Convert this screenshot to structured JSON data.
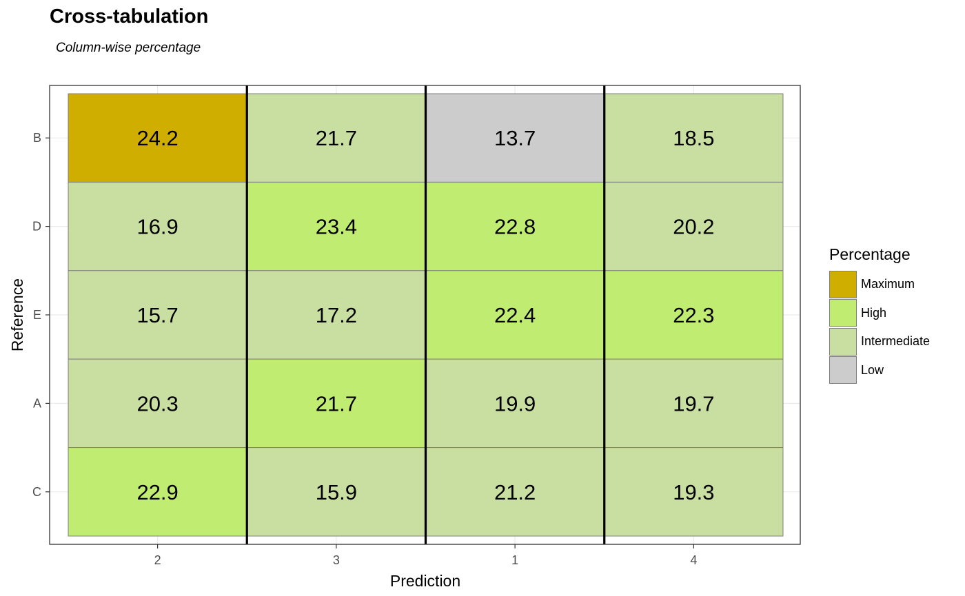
{
  "chart_data": {
    "type": "heatmap",
    "title": "Cross-tabulation",
    "subtitle": "Column-wise percentage",
    "xlabel": "Prediction",
    "ylabel": "Reference",
    "x_categories": [
      "2",
      "3",
      "1",
      "4"
    ],
    "y_categories": [
      "B",
      "D",
      "E",
      "A",
      "C"
    ],
    "cells": [
      {
        "x": "2",
        "y": "B",
        "value": 24.2,
        "class": "Maximum"
      },
      {
        "x": "3",
        "y": "B",
        "value": 21.7,
        "class": "Intermediate"
      },
      {
        "x": "1",
        "y": "B",
        "value": 13.7,
        "class": "Low"
      },
      {
        "x": "4",
        "y": "B",
        "value": 18.5,
        "class": "Intermediate"
      },
      {
        "x": "2",
        "y": "D",
        "value": 16.9,
        "class": "Intermediate"
      },
      {
        "x": "3",
        "y": "D",
        "value": 23.4,
        "class": "High"
      },
      {
        "x": "1",
        "y": "D",
        "value": 22.8,
        "class": "High"
      },
      {
        "x": "4",
        "y": "D",
        "value": 20.2,
        "class": "Intermediate"
      },
      {
        "x": "2",
        "y": "E",
        "value": 15.7,
        "class": "Intermediate"
      },
      {
        "x": "3",
        "y": "E",
        "value": 17.2,
        "class": "Intermediate"
      },
      {
        "x": "1",
        "y": "E",
        "value": 22.4,
        "class": "High"
      },
      {
        "x": "4",
        "y": "E",
        "value": 22.3,
        "class": "High"
      },
      {
        "x": "2",
        "y": "A",
        "value": 20.3,
        "class": "Intermediate"
      },
      {
        "x": "3",
        "y": "A",
        "value": 21.7,
        "class": "High"
      },
      {
        "x": "1",
        "y": "A",
        "value": 19.9,
        "class": "Intermediate"
      },
      {
        "x": "4",
        "y": "A",
        "value": 19.7,
        "class": "Intermediate"
      },
      {
        "x": "2",
        "y": "C",
        "value": 22.9,
        "class": "High"
      },
      {
        "x": "3",
        "y": "C",
        "value": 15.9,
        "class": "Intermediate"
      },
      {
        "x": "1",
        "y": "C",
        "value": 21.2,
        "class": "Intermediate"
      },
      {
        "x": "4",
        "y": "C",
        "value": 19.3,
        "class": "Intermediate"
      }
    ],
    "legend": {
      "title": "Percentage",
      "position": "right",
      "items": [
        {
          "label": "Maximum",
          "color": "#D0AE00"
        },
        {
          "label": "High",
          "color": "#C0EC72"
        },
        {
          "label": "Intermediate",
          "color": "#C9DEA1"
        },
        {
          "label": "Low",
          "color": "#CCCCCC"
        }
      ]
    },
    "grid": true
  }
}
